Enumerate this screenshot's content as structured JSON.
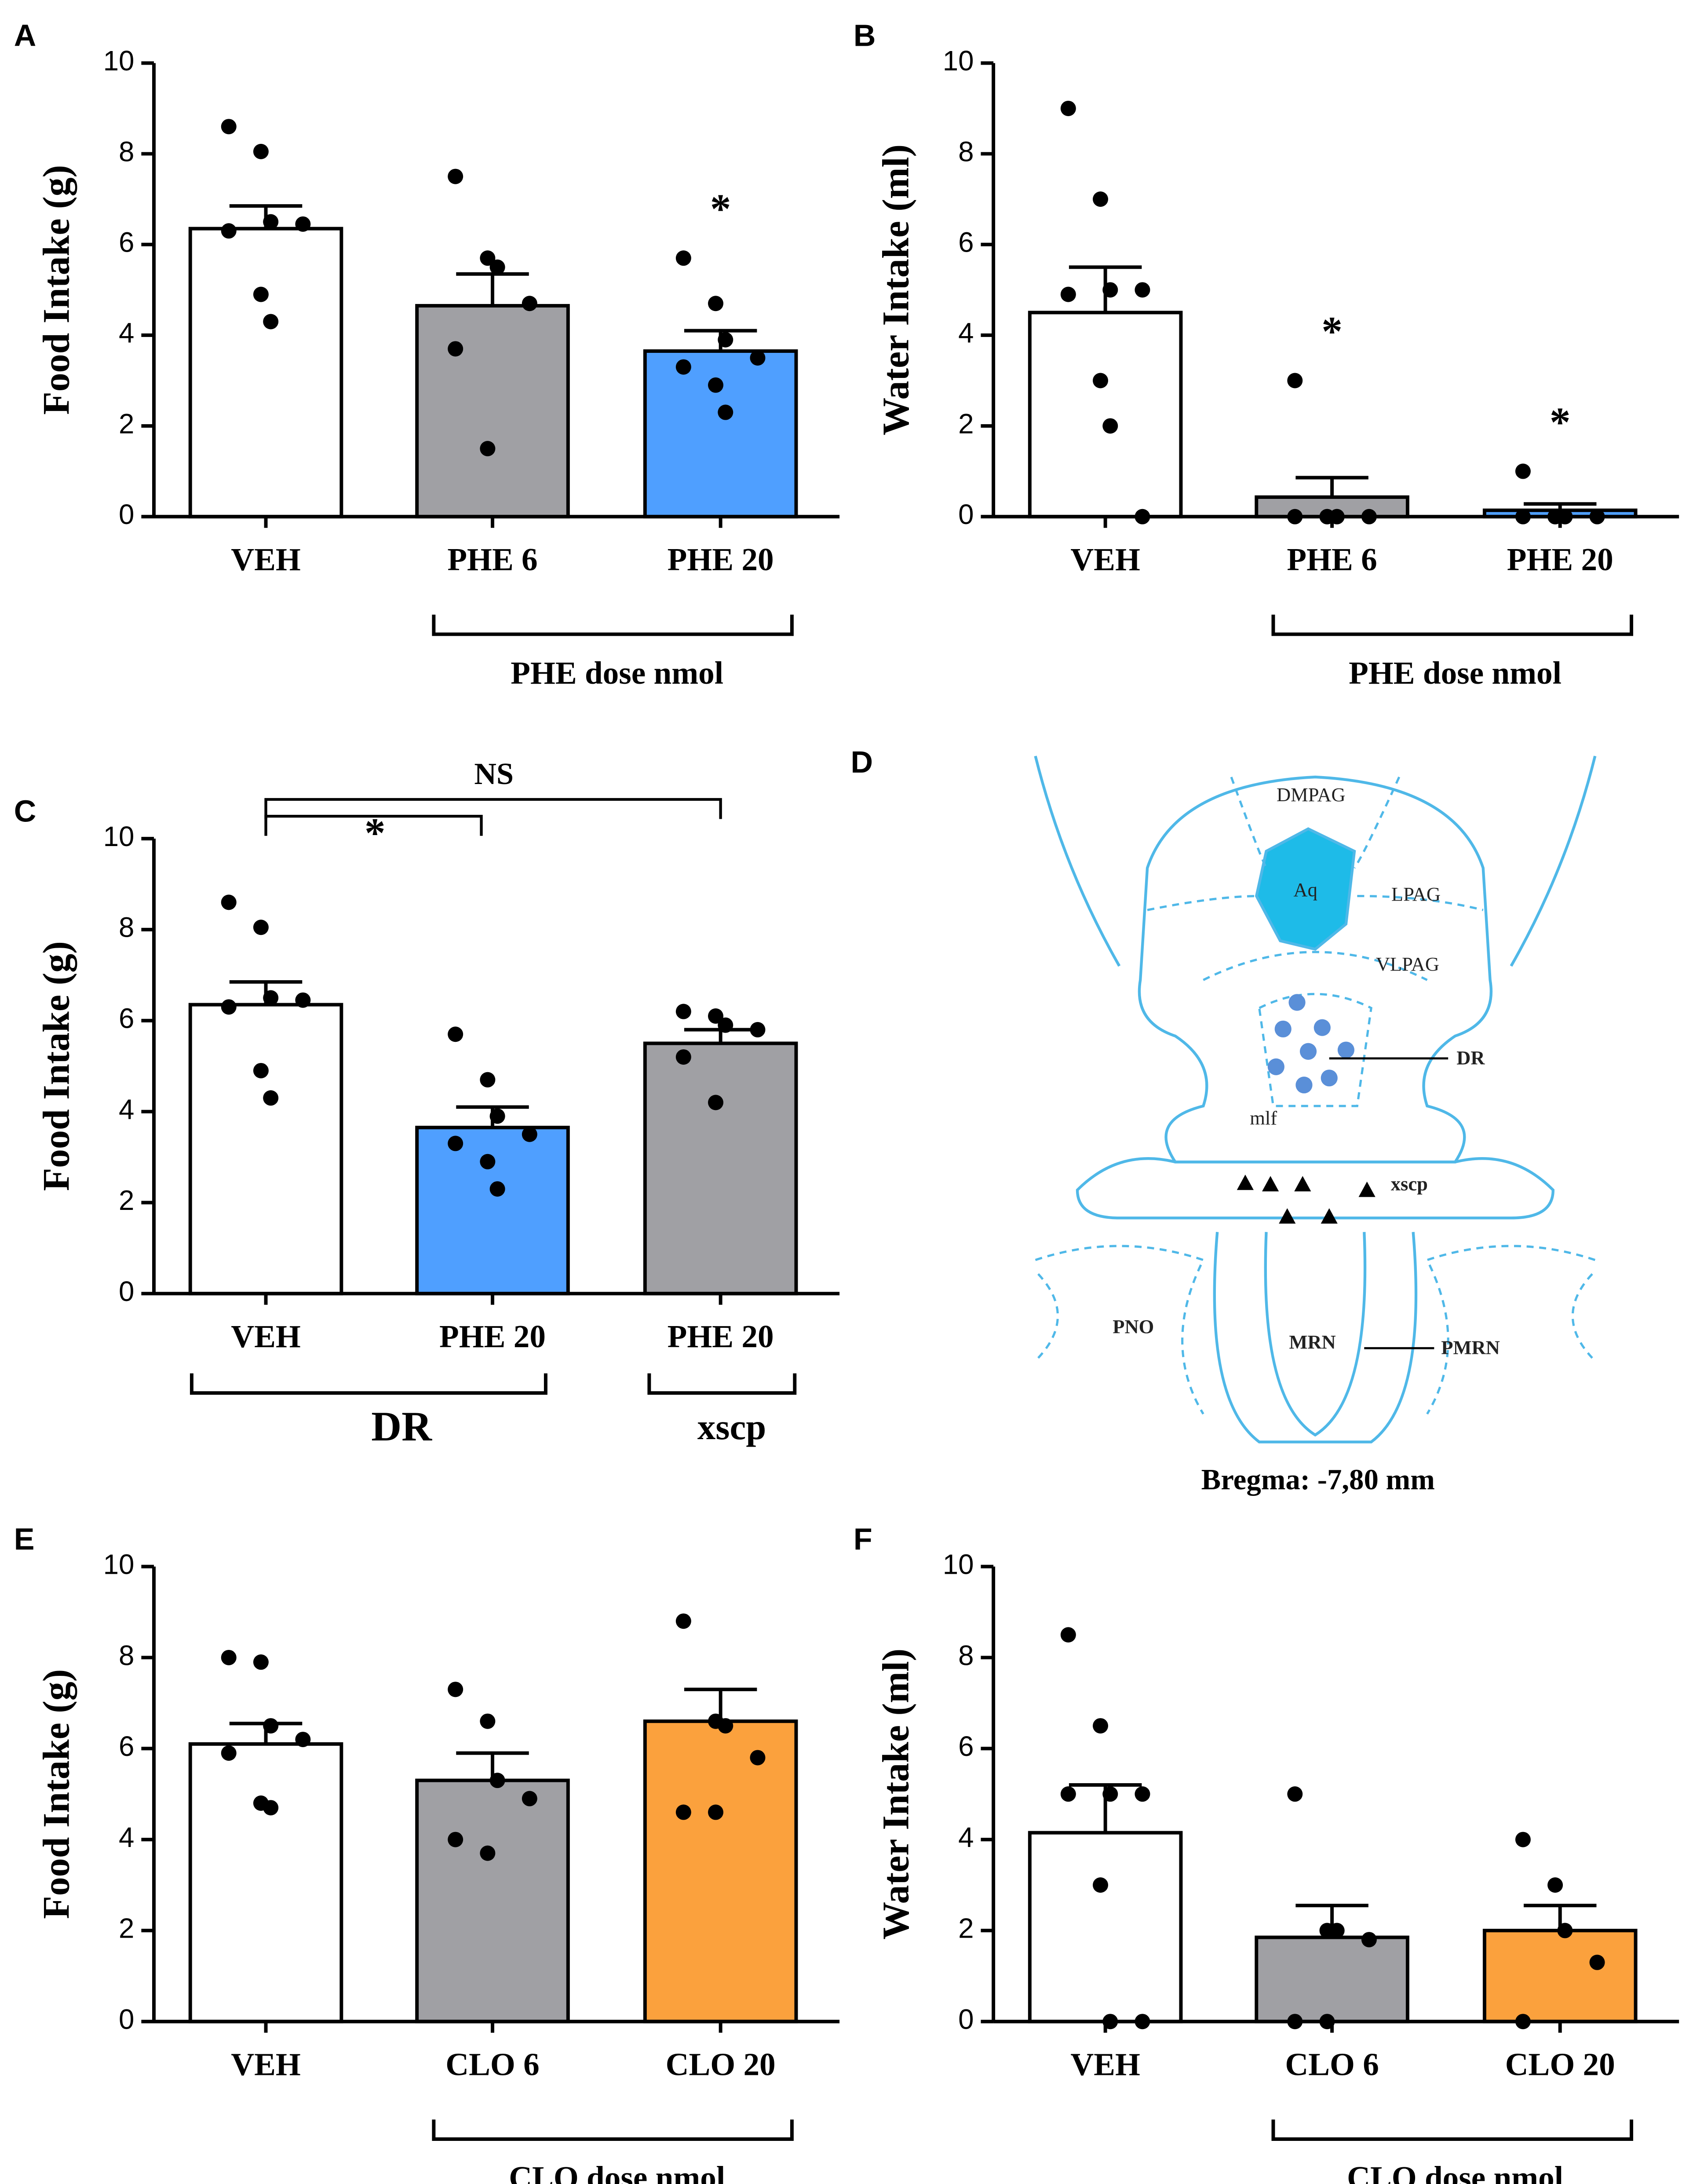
{
  "chart_data": [
    {
      "type": "bar",
      "panel": "A",
      "ylabel": "Food Intake (g)",
      "categories": [
        "VEH",
        "PHE 6",
        "PHE 20"
      ],
      "values": [
        6.35,
        4.65,
        3.65
      ],
      "errors": [
        0.5,
        0.7,
        0.45
      ],
      "points": [
        [
          8.6,
          8.05,
          6.5,
          6.45,
          6.3,
          4.9,
          4.3
        ],
        [
          7.5,
          5.7,
          5.5,
          4.7,
          3.7,
          1.5
        ],
        [
          5.7,
          4.7,
          3.9,
          3.5,
          3.3,
          2.9,
          2.3
        ]
      ],
      "colors": [
        "#ffffff",
        "#a0a0a4",
        "#4f9fff"
      ],
      "ylim": [
        0,
        10
      ],
      "yticks": [
        0,
        2,
        4,
        6,
        8,
        10
      ],
      "annotations": [
        {
          "text": "*",
          "category": "PHE 20"
        }
      ],
      "groups": [
        "PHE dose nmol"
      ]
    },
    {
      "type": "bar",
      "panel": "B",
      "ylabel": "Water Intake (ml)",
      "categories": [
        "VEH",
        "PHE 6",
        "PHE 20"
      ],
      "values": [
        4.5,
        0.43,
        0.14
      ],
      "errors": [
        1.0,
        0.43,
        0.14
      ],
      "points": [
        [
          9,
          7,
          5,
          5,
          4.9,
          3,
          2,
          0
        ],
        [
          3,
          0,
          0,
          0,
          0,
          0,
          0
        ],
        [
          1,
          0,
          0,
          0,
          0,
          0,
          0
        ]
      ],
      "colors": [
        "#ffffff",
        "#a0a0a4",
        "#4f9fff"
      ],
      "ylim": [
        0,
        10
      ],
      "yticks": [
        0,
        2,
        4,
        6,
        8,
        10
      ],
      "annotations": [
        {
          "text": "*",
          "category": "PHE 6"
        },
        {
          "text": "*",
          "category": "PHE 20"
        }
      ],
      "groups": [
        "PHE dose nmol"
      ]
    },
    {
      "type": "bar",
      "panel": "C",
      "ylabel": "Food Intake (g)",
      "categories": [
        "VEH",
        "PHE 20",
        "PHE 20"
      ],
      "values": [
        6.35,
        3.65,
        5.5
      ],
      "errors": [
        0.5,
        0.45,
        0.3
      ],
      "points": [
        [
          8.6,
          8.05,
          6.5,
          6.45,
          6.3,
          4.9,
          4.3
        ],
        [
          5.7,
          4.7,
          3.9,
          3.5,
          3.3,
          2.9,
          2.3
        ],
        [
          6.2,
          6.1,
          5.9,
          5.8,
          5.2,
          4.2
        ]
      ],
      "colors": [
        "#ffffff",
        "#4f9fff",
        "#a0a0a4"
      ],
      "ylim": [
        0,
        10
      ],
      "yticks": [
        0,
        2,
        4,
        6,
        8,
        10
      ],
      "comparisons": [
        "*",
        "NS"
      ],
      "groups": [
        "DR",
        "xscp"
      ]
    },
    {
      "type": "bar",
      "panel": "E",
      "ylabel": "Food Intake (g)",
      "categories": [
        "VEH",
        "CLO 6",
        "CLO 20"
      ],
      "values": [
        6.1,
        5.3,
        6.6
      ],
      "errors": [
        0.45,
        0.6,
        0.7
      ],
      "points": [
        [
          8.0,
          7.9,
          6.5,
          6.2,
          5.9,
          4.8,
          4.7
        ],
        [
          7.3,
          6.6,
          5.3,
          4.9,
          4.0,
          3.7
        ],
        [
          8.8,
          6.6,
          6.5,
          5.8,
          4.6,
          4.6
        ]
      ],
      "colors": [
        "#ffffff",
        "#a0a0a4",
        "#fba13d"
      ],
      "ylim": [
        0,
        10
      ],
      "yticks": [
        0,
        2,
        4,
        6,
        8,
        10
      ],
      "groups": [
        "CLO dose nmol"
      ]
    },
    {
      "type": "bar",
      "panel": "F",
      "ylabel": "Water Intake (ml)",
      "categories": [
        "VEH",
        "CLO 6",
        "CLO 20"
      ],
      "values": [
        4.15,
        1.85,
        2.0
      ],
      "errors": [
        1.05,
        0.7,
        0.55
      ],
      "points": [
        [
          8.5,
          6.5,
          5,
          5,
          5,
          3,
          0,
          0
        ],
        [
          5,
          2,
          2,
          1.8,
          0,
          0
        ],
        [
          4,
          3,
          2,
          1.3,
          0
        ]
      ],
      "colors": [
        "#ffffff",
        "#a0a0a4",
        "#fba13d"
      ],
      "ylim": [
        0,
        10
      ],
      "yticks": [
        0,
        2,
        4,
        6,
        8,
        10
      ],
      "groups": [
        "CLO dose nmol"
      ]
    }
  ],
  "diagram": {
    "panel": "D",
    "labels": [
      "DMPAG",
      "Aq",
      "LPAG",
      "VLPAG",
      "DR",
      "mlf",
      "xscp",
      "PNO",
      "MRN",
      "PMRN"
    ],
    "caption": "Bregma: -7,80 mm"
  }
}
